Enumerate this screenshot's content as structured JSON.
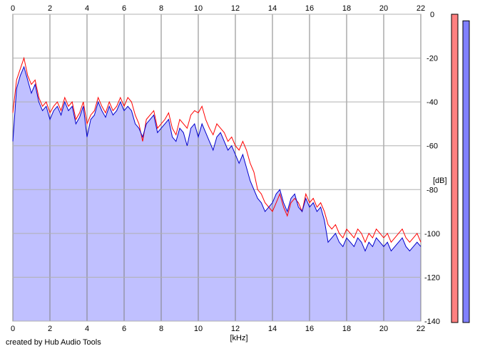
{
  "chart_data": {
    "type": "line",
    "x_unit": "[kHz]",
    "y_unit": "[dB]",
    "xlim": [
      0,
      22
    ],
    "ylim": [
      -140,
      0
    ],
    "x_ticks": [
      "0",
      "2",
      "4",
      "6",
      "8",
      "10",
      "12",
      "14",
      "16",
      "18",
      "20",
      "22"
    ],
    "y_ticks": [
      "0",
      "-20",
      "-40",
      "-60",
      "-80",
      "-100",
      "-120",
      "-140"
    ],
    "grid": true,
    "fill_color": "#c0c0ff",
    "series": [
      {
        "color": "#ff0000",
        "x": [
          0.0,
          0.2,
          0.4,
          0.6,
          0.8,
          1.0,
          1.2,
          1.4,
          1.6,
          1.8,
          2.0,
          2.2,
          2.4,
          2.6,
          2.8,
          3.0,
          3.2,
          3.4,
          3.6,
          3.8,
          4.0,
          4.2,
          4.4,
          4.6,
          4.8,
          5.0,
          5.2,
          5.4,
          5.6,
          5.8,
          6.0,
          6.2,
          6.4,
          6.6,
          6.8,
          7.0,
          7.2,
          7.4,
          7.6,
          7.8,
          8.0,
          8.2,
          8.4,
          8.6,
          8.8,
          9.0,
          9.2,
          9.4,
          9.6,
          9.8,
          10.0,
          10.2,
          10.4,
          10.6,
          10.8,
          11.0,
          11.2,
          11.4,
          11.6,
          11.8,
          12.0,
          12.2,
          12.4,
          12.6,
          12.8,
          13.0,
          13.2,
          13.4,
          13.6,
          13.8,
          14.0,
          14.2,
          14.4,
          14.6,
          14.8,
          15.0,
          15.2,
          15.4,
          15.6,
          15.8,
          16.0,
          16.2,
          16.4,
          16.6,
          16.8,
          17.0,
          17.2,
          17.4,
          17.6,
          17.8,
          18.0,
          18.2,
          18.4,
          18.6,
          18.8,
          19.0,
          19.2,
          19.4,
          19.6,
          19.8,
          20.0,
          20.2,
          20.4,
          20.6,
          20.8,
          21.0,
          21.2,
          21.4,
          21.6,
          21.8,
          22.0
        ],
        "y": [
          -45,
          -30,
          -25,
          -20,
          -28,
          -32,
          -30,
          -38,
          -42,
          -40,
          -45,
          -42,
          -40,
          -44,
          -38,
          -42,
          -40,
          -48,
          -45,
          -40,
          -50,
          -46,
          -44,
          -38,
          -42,
          -45,
          -40,
          -44,
          -42,
          -38,
          -42,
          -38,
          -40,
          -46,
          -50,
          -58,
          -48,
          -46,
          -44,
          -52,
          -50,
          -48,
          -45,
          -52,
          -55,
          -48,
          -50,
          -52,
          -46,
          -44,
          -45,
          -42,
          -48,
          -52,
          -55,
          -50,
          -52,
          -54,
          -58,
          -56,
          -60,
          -62,
          -58,
          -62,
          -68,
          -72,
          -80,
          -82,
          -86,
          -88,
          -90,
          -86,
          -82,
          -88,
          -92,
          -86,
          -84,
          -86,
          -90,
          -82,
          -86,
          -84,
          -88,
          -86,
          -90,
          -96,
          -98,
          -96,
          -100,
          -102,
          -98,
          -100,
          -102,
          -98,
          -100,
          -104,
          -100,
          -102,
          -98,
          -100,
          -102,
          -100,
          -104,
          -102,
          -100,
          -98,
          -102,
          -104,
          -102,
          -100,
          -104
        ]
      },
      {
        "color": "#0000cc",
        "x": [
          0.0,
          0.2,
          0.4,
          0.6,
          0.8,
          1.0,
          1.2,
          1.4,
          1.6,
          1.8,
          2.0,
          2.2,
          2.4,
          2.6,
          2.8,
          3.0,
          3.2,
          3.4,
          3.6,
          3.8,
          4.0,
          4.2,
          4.4,
          4.6,
          4.8,
          5.0,
          5.2,
          5.4,
          5.6,
          5.8,
          6.0,
          6.2,
          6.4,
          6.6,
          6.8,
          7.0,
          7.2,
          7.4,
          7.6,
          7.8,
          8.0,
          8.2,
          8.4,
          8.6,
          8.8,
          9.0,
          9.2,
          9.4,
          9.6,
          9.8,
          10.0,
          10.2,
          10.4,
          10.6,
          10.8,
          11.0,
          11.2,
          11.4,
          11.6,
          11.8,
          12.0,
          12.2,
          12.4,
          12.6,
          12.8,
          13.0,
          13.2,
          13.4,
          13.6,
          13.8,
          14.0,
          14.2,
          14.4,
          14.6,
          14.8,
          15.0,
          15.2,
          15.4,
          15.6,
          15.8,
          16.0,
          16.2,
          16.4,
          16.6,
          16.8,
          17.0,
          17.2,
          17.4,
          17.6,
          17.8,
          18.0,
          18.2,
          18.4,
          18.6,
          18.8,
          19.0,
          19.2,
          19.4,
          19.6,
          19.8,
          20.0,
          20.2,
          20.4,
          20.6,
          20.8,
          21.0,
          21.2,
          21.4,
          21.6,
          21.8,
          22.0
        ],
        "y": [
          -58,
          -34,
          -28,
          -24,
          -30,
          -36,
          -32,
          -40,
          -44,
          -42,
          -48,
          -44,
          -42,
          -46,
          -40,
          -44,
          -42,
          -50,
          -47,
          -42,
          -56,
          -48,
          -46,
          -40,
          -44,
          -47,
          -42,
          -46,
          -44,
          -40,
          -44,
          -42,
          -44,
          -50,
          -52,
          -56,
          -50,
          -48,
          -46,
          -54,
          -52,
          -50,
          -48,
          -56,
          -58,
          -52,
          -54,
          -60,
          -52,
          -50,
          -56,
          -50,
          -54,
          -58,
          -62,
          -56,
          -54,
          -58,
          -62,
          -60,
          -64,
          -68,
          -64,
          -70,
          -76,
          -80,
          -84,
          -86,
          -90,
          -88,
          -86,
          -82,
          -80,
          -86,
          -90,
          -84,
          -82,
          -88,
          -90,
          -84,
          -88,
          -86,
          -90,
          -88,
          -94,
          -104,
          -102,
          -100,
          -104,
          -106,
          -102,
          -104,
          -106,
          -102,
          -104,
          -108,
          -104,
          -106,
          -102,
          -104,
          -106,
          -104,
          -108,
          -106,
          -104,
          -102,
          -106,
          -108,
          -106,
          -104,
          -106
        ]
      }
    ],
    "meters": [
      {
        "color": "#ff8080",
        "level_db": 0
      },
      {
        "color": "#8080ff",
        "level_db": -3
      }
    ]
  },
  "footer": {
    "credit": "created by Hub Audio Tools"
  }
}
